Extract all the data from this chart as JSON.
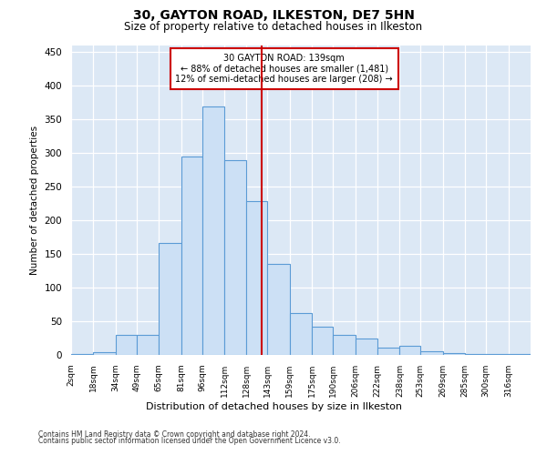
{
  "title_line1": "30, GAYTON ROAD, ILKESTON, DE7 5HN",
  "title_line2": "Size of property relative to detached houses in Ilkeston",
  "xlabel": "Distribution of detached houses by size in Ilkeston",
  "ylabel": "Number of detached properties",
  "footer_line1": "Contains HM Land Registry data © Crown copyright and database right 2024.",
  "footer_line2": "Contains public sector information licensed under the Open Government Licence v3.0.",
  "bar_labels": [
    "2sqm",
    "18sqm",
    "34sqm",
    "49sqm",
    "65sqm",
    "81sqm",
    "96sqm",
    "112sqm",
    "128sqm",
    "143sqm",
    "159sqm",
    "175sqm",
    "190sqm",
    "206sqm",
    "222sqm",
    "238sqm",
    "253sqm",
    "269sqm",
    "285sqm",
    "300sqm",
    "316sqm"
  ],
  "bar_heights": [
    2,
    4,
    30,
    30,
    167,
    295,
    370,
    290,
    228,
    135,
    62,
    42,
    30,
    25,
    11,
    13,
    5,
    3,
    2,
    1,
    1
  ],
  "bin_edges": [
    2,
    18,
    34,
    49,
    65,
    81,
    96,
    112,
    128,
    143,
    159,
    175,
    190,
    206,
    222,
    238,
    253,
    269,
    285,
    300,
    316,
    332
  ],
  "bar_color": "#cce0f5",
  "bar_edge_color": "#5b9bd5",
  "annotation_text": "30 GAYTON ROAD: 139sqm\n← 88% of detached houses are smaller (1,481)\n12% of semi-detached houses are larger (208) →",
  "annotation_box_facecolor": "#ffffff",
  "annotation_box_edgecolor": "#cc0000",
  "vline_x": 139,
  "vline_color": "#cc0000",
  "bg_color": "#dce8f5",
  "ylim": [
    0,
    460
  ],
  "yticks": [
    0,
    50,
    100,
    150,
    200,
    250,
    300,
    350,
    400,
    450
  ]
}
